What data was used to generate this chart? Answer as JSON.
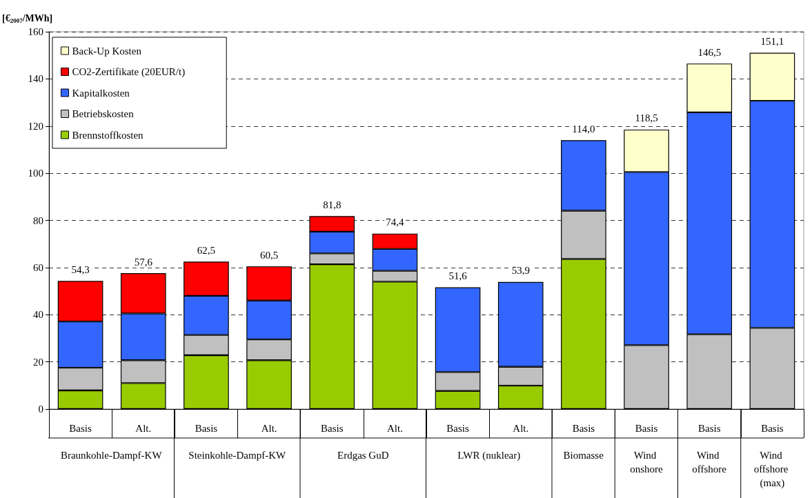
{
  "chart_data": {
    "type": "bar",
    "stacked": true,
    "ylabel": "[€$_{2007}$/MWh]",
    "categories": [
      "Basis",
      "Alt.",
      "Basis",
      "Alt.",
      "Basis",
      "Alt.",
      "Basis",
      "Alt.",
      "Basis",
      "Basis",
      "Basis",
      "Basis"
    ],
    "annotations": [
      "Braunkohle-Dampf-KW",
      "Steinkohle-Dampf-KW",
      "Erdgas GuD",
      "LWR (nuklear)",
      "Biomasse",
      "Wind onshore",
      "Wind offshore",
      "Wind offshore (max)"
    ],
    "series": [
      {
        "name": "Brennstoffkosten",
        "color": "#99cc00",
        "values": [
          7.9,
          11.0,
          22.8,
          20.7,
          61.4,
          54.0,
          7.7,
          9.9,
          63.6,
          null,
          null,
          null
        ]
      },
      {
        "name": "Betriebskosten",
        "color": "#c0c0c0",
        "values": [
          9.6,
          9.7,
          8.6,
          8.8,
          4.6,
          4.6,
          8.0,
          8.0,
          20.5,
          27.1,
          31.7,
          34.4
        ]
      },
      {
        "name": "Kapitalkosten",
        "color": "#3366ff",
        "values": [
          19.6,
          19.8,
          16.6,
          16.5,
          9.2,
          9.3,
          35.9,
          36.0,
          29.9,
          73.4,
          94.1,
          96.3
        ]
      },
      {
        "name": "CO2-Zertifikate (20EUR/t)",
        "color": "#ff0000",
        "values": [
          17.2,
          17.1,
          14.5,
          14.5,
          6.6,
          6.5,
          null,
          null,
          null,
          null,
          null,
          null
        ]
      },
      {
        "name": "Back-Up Kosten",
        "color": "#ffffcc",
        "values": [
          null,
          null,
          null,
          null,
          null,
          null,
          null,
          null,
          null,
          18.0,
          20.7,
          20.4
        ]
      }
    ],
    "totals": [
      "54,3",
      "57,6",
      "62,5",
      "60,5",
      "81,8",
      "74,4",
      "51,6",
      "53,9",
      "114,0",
      "118,5",
      "146,5",
      "151,1"
    ],
    "ylim": [
      0,
      160
    ],
    "yticks": [
      0,
      20,
      40,
      60,
      80,
      100,
      120,
      140,
      160
    ],
    "grid": "y",
    "legend": "top left"
  }
}
